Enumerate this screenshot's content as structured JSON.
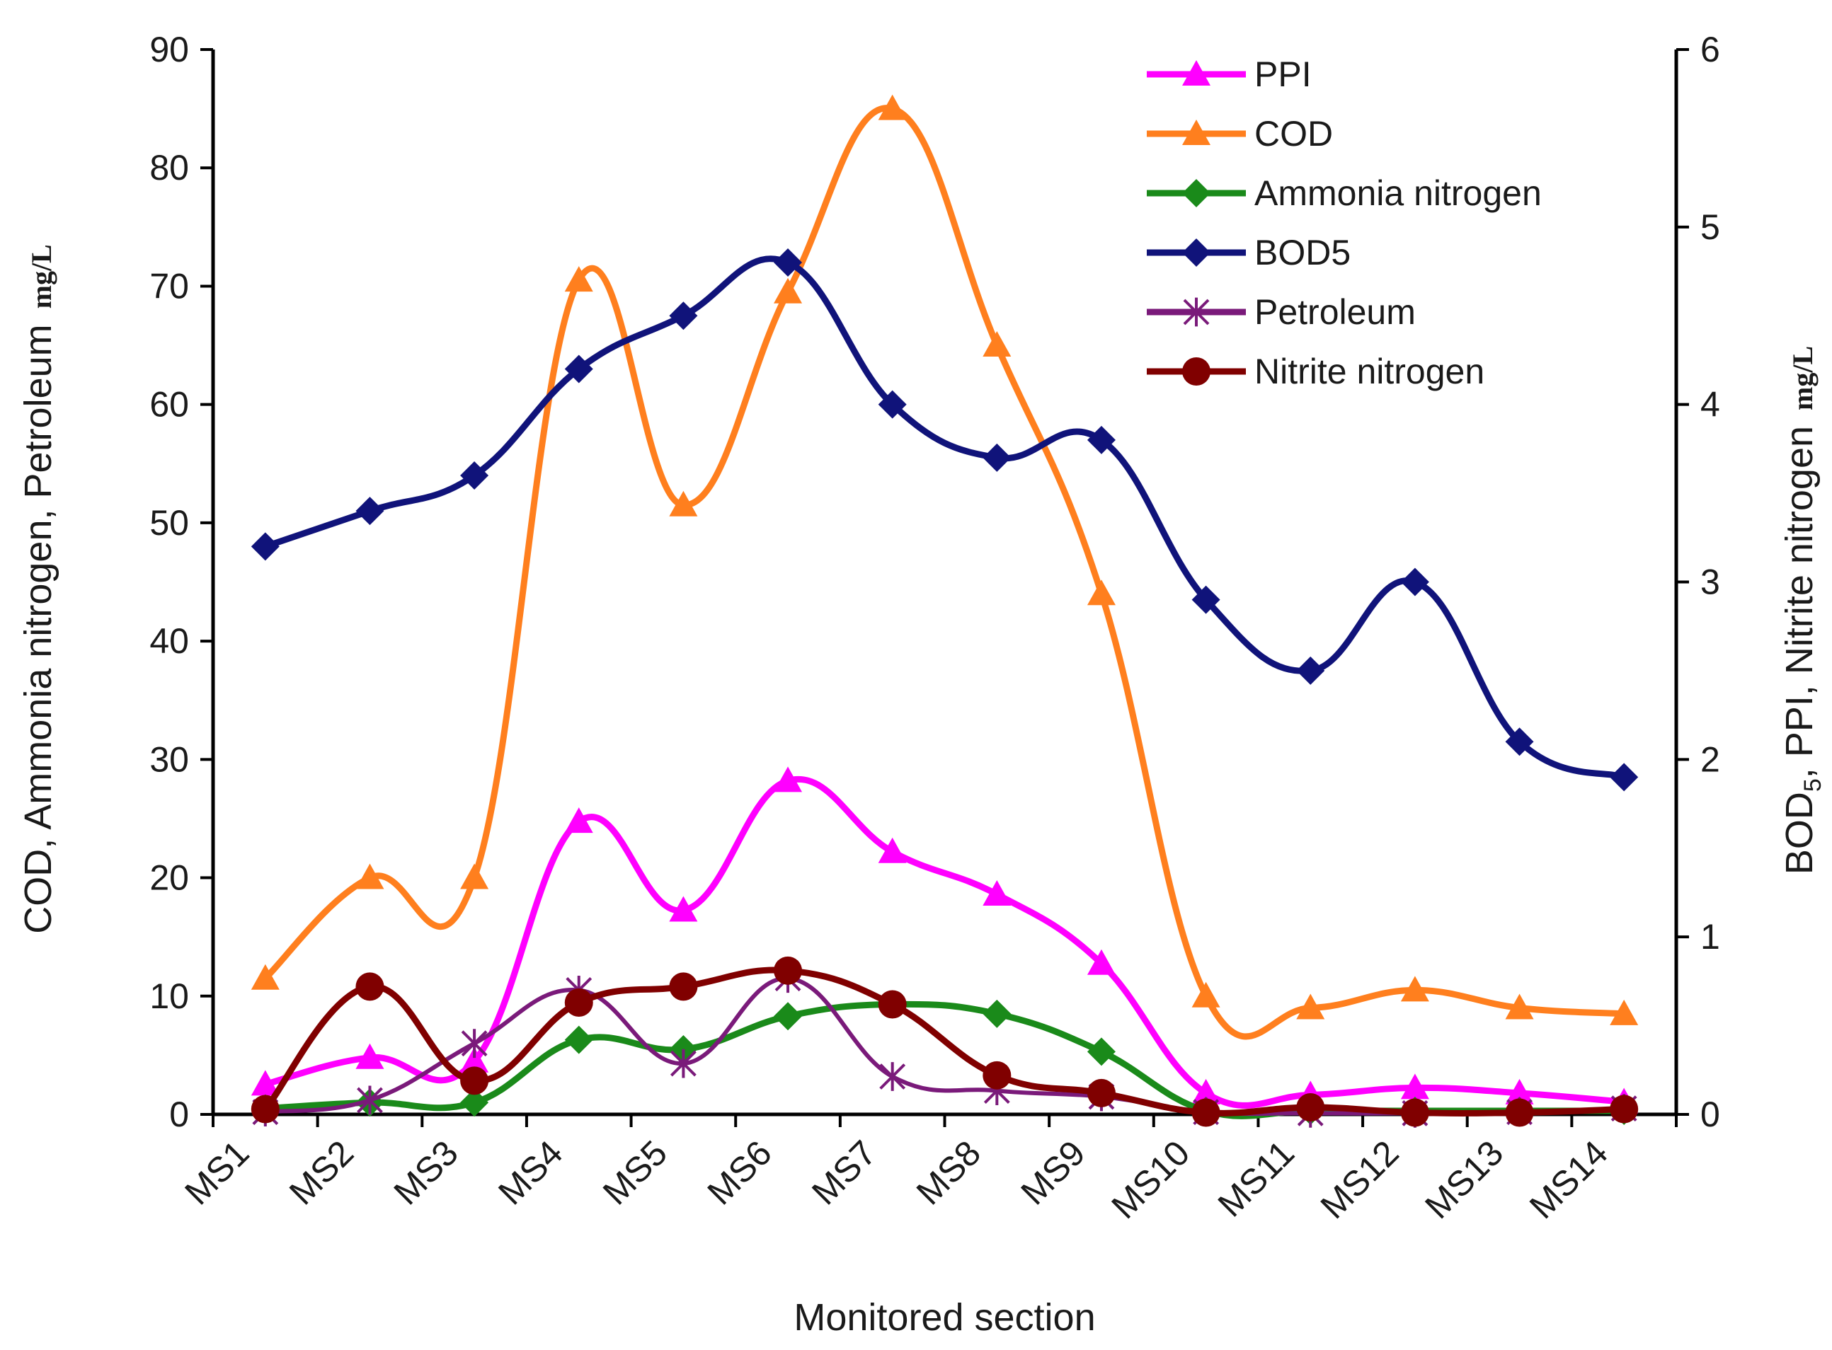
{
  "chart_data": {
    "type": "line",
    "title": "",
    "xlabel": "Monitored section",
    "ylabel_left_parts": [
      "COD, Ammonia nitrogen, Petroleum",
      "mg/L"
    ],
    "ylabel_right_parts": [
      "BOD",
      "5",
      ", PPI, Nitrite nitrogen",
      "mg/L"
    ],
    "categories": [
      "MS1",
      "MS2",
      "MS3",
      "MS4",
      "MS5",
      "MS6",
      "MS7",
      "MS8",
      "MS9",
      "MS10",
      "MS11",
      "MS12",
      "MS13",
      "MS14"
    ],
    "y_left": {
      "min": 0,
      "max": 90,
      "ticks": [
        0,
        10,
        20,
        30,
        40,
        50,
        60,
        70,
        80,
        90
      ]
    },
    "y_right": {
      "min": 0,
      "max": 6,
      "ticks": [
        0,
        1,
        2,
        3,
        4,
        5,
        6
      ]
    },
    "legend_position": "top-right",
    "series": [
      {
        "name": "PPI",
        "axis": "right",
        "color": "#ff00ff",
        "marker": "triangle",
        "values": [
          0.17,
          0.32,
          0.3,
          1.65,
          1.15,
          1.88,
          1.48,
          1.24,
          0.85,
          0.12,
          0.11,
          0.15,
          0.12,
          0.07
        ]
      },
      {
        "name": "COD",
        "axis": "left",
        "color": "#ff7f1e",
        "marker": "triangle",
        "values": [
          11.5,
          20,
          20,
          70.5,
          51.5,
          69.5,
          85,
          65,
          44,
          10,
          9,
          10.5,
          9,
          8.5
        ]
      },
      {
        "name": "Ammonia nitrogen",
        "axis": "left",
        "color": "#1a8a1a",
        "marker": "diamond",
        "values": [
          0.5,
          1,
          1,
          6.3,
          5.5,
          8.3,
          9.3,
          8.5,
          5.3,
          0.3,
          0.3,
          0.3,
          0.3,
          0.3
        ]
      },
      {
        "name": "BOD5",
        "axis": "right",
        "color": "#10137a",
        "marker": "diamond",
        "values": [
          3.2,
          3.4,
          3.6,
          4.2,
          4.5,
          4.8,
          4.0,
          3.7,
          3.8,
          2.9,
          2.5,
          3.0,
          2.1,
          1.9
        ]
      },
      {
        "name": "Petroleum",
        "axis": "left",
        "color": "#7a1a7a",
        "marker": "star",
        "values": [
          0.2,
          1.2,
          6,
          10.5,
          4.3,
          11.5,
          3.2,
          2,
          1.5,
          0.2,
          0.1,
          0.1,
          0.2,
          0.5
        ]
      },
      {
        "name": "Nitrite nitrogen",
        "axis": "right",
        "color": "#800000",
        "marker": "circle",
        "values": [
          0.03,
          0.72,
          0.19,
          0.63,
          0.72,
          0.81,
          0.62,
          0.22,
          0.12,
          0.01,
          0.04,
          0.01,
          0.01,
          0.03
        ]
      }
    ]
  }
}
